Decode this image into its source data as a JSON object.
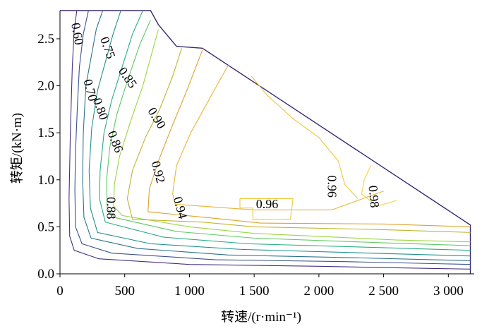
{
  "chart_data": {
    "type": "contour",
    "xlabel": "转速/(r·min⁻¹)",
    "ylabel": "转矩/(kN·m)",
    "xlim": [
      0,
      3200
    ],
    "ylim": [
      0,
      2.8
    ],
    "x_ticks": [
      0,
      500,
      1000,
      1500,
      2000,
      2500,
      3000
    ],
    "x_tick_labels": [
      "0",
      "500",
      "1 000",
      "1 500",
      "2 000",
      "2 500",
      "3 000"
    ],
    "y_ticks": [
      0.0,
      0.5,
      1.0,
      1.5,
      2.0,
      2.5
    ],
    "y_tick_labels": [
      "0.0",
      "0.5",
      "1.0",
      "1.5",
      "2.0",
      "2.5"
    ],
    "envelope": [
      [
        0,
        2.8
      ],
      [
        700,
        2.8
      ],
      [
        760,
        2.65
      ],
      [
        900,
        2.42
      ],
      [
        1100,
        2.4
      ],
      [
        3170,
        0.52
      ],
      [
        3170,
        0.0
      ]
    ],
    "series": [
      {
        "value": 0.6,
        "color": "#46317e",
        "points": [
          [
            130,
            2.8
          ],
          [
            110,
            2.6
          ],
          [
            95,
            2.2
          ],
          [
            80,
            1.5
          ],
          [
            70,
            0.8
          ],
          [
            75,
            0.4
          ],
          [
            110,
            0.25
          ],
          [
            300,
            0.16
          ],
          [
            1000,
            0.1
          ],
          [
            2000,
            0.08
          ],
          [
            3170,
            0.05
          ]
        ]
      },
      {
        "value": 0.7,
        "color": "#3b528b",
        "points": [
          [
            220,
            2.8
          ],
          [
            180,
            2.55
          ],
          [
            150,
            2.2
          ],
          [
            135,
            1.8
          ],
          [
            120,
            1.3
          ],
          [
            115,
            0.9
          ],
          [
            120,
            0.5
          ],
          [
            170,
            0.32
          ],
          [
            400,
            0.22
          ],
          [
            1200,
            0.15
          ],
          [
            2200,
            0.13
          ],
          [
            3170,
            0.1
          ]
        ]
      },
      {
        "value": 0.75,
        "color": "#2c728e",
        "points": [
          [
            330,
            2.8
          ],
          [
            280,
            2.6
          ],
          [
            240,
            2.3
          ],
          [
            200,
            2.0
          ],
          [
            180,
            1.5
          ],
          [
            175,
            1.0
          ],
          [
            185,
            0.6
          ],
          [
            240,
            0.38
          ],
          [
            600,
            0.27
          ],
          [
            1300,
            0.2
          ],
          [
            2300,
            0.17
          ],
          [
            3170,
            0.14
          ]
        ]
      },
      {
        "value": 0.8,
        "color": "#21918c",
        "points": [
          [
            470,
            2.8
          ],
          [
            410,
            2.55
          ],
          [
            350,
            2.25
          ],
          [
            290,
            1.95
          ],
          [
            245,
            1.55
          ],
          [
            225,
            1.1
          ],
          [
            235,
            0.7
          ],
          [
            290,
            0.44
          ],
          [
            700,
            0.32
          ],
          [
            1400,
            0.26
          ],
          [
            2400,
            0.22
          ],
          [
            3170,
            0.19
          ]
        ]
      },
      {
        "value": 0.85,
        "color": "#28ae80",
        "points": [
          [
            640,
            2.8
          ],
          [
            560,
            2.55
          ],
          [
            480,
            2.2
          ],
          [
            400,
            1.85
          ],
          [
            340,
            1.5
          ],
          [
            310,
            1.1
          ],
          [
            305,
            0.8
          ],
          [
            350,
            0.55
          ],
          [
            800,
            0.39
          ],
          [
            1450,
            0.32
          ],
          [
            2450,
            0.28
          ],
          [
            3170,
            0.25
          ]
        ]
      },
      {
        "value": 0.86,
        "color": "#5ec962",
        "points": [
          [
            700,
            2.7
          ],
          [
            620,
            2.45
          ],
          [
            520,
            2.05
          ],
          [
            440,
            1.7
          ],
          [
            385,
            1.35
          ],
          [
            360,
            1.0
          ],
          [
            365,
            0.7
          ],
          [
            420,
            0.6
          ],
          [
            900,
            0.45
          ],
          [
            1500,
            0.38
          ],
          [
            2500,
            0.33
          ],
          [
            3170,
            0.3
          ]
        ]
      },
      {
        "value": 0.88,
        "color": "#9ad640",
        "points": [
          [
            760,
            2.6
          ],
          [
            720,
            2.4
          ],
          [
            640,
            2.0
          ],
          [
            540,
            1.6
          ],
          [
            460,
            1.25
          ],
          [
            420,
            0.95
          ],
          [
            415,
            0.72
          ],
          [
            480,
            0.62
          ],
          [
            1000,
            0.5
          ],
          [
            1500,
            0.43
          ],
          [
            2600,
            0.36
          ],
          [
            3170,
            0.34
          ]
        ]
      },
      {
        "value": 0.9,
        "color": "#c2b42f",
        "points": [
          [
            940,
            2.4
          ],
          [
            870,
            2.1
          ],
          [
            770,
            1.75
          ],
          [
            660,
            1.45
          ],
          [
            560,
            1.1
          ],
          [
            520,
            0.8
          ],
          [
            560,
            0.58
          ],
          [
            1100,
            0.55
          ],
          [
            1500,
            0.5
          ],
          [
            2500,
            0.47
          ],
          [
            3170,
            0.44
          ]
        ]
      },
      {
        "value": 0.92,
        "color": "#dea32e",
        "points": [
          [
            1100,
            2.38
          ],
          [
            980,
            1.95
          ],
          [
            860,
            1.55
          ],
          [
            760,
            1.2
          ],
          [
            690,
            0.9
          ],
          [
            680,
            0.66
          ],
          [
            1200,
            0.59
          ],
          [
            1550,
            0.54
          ],
          [
            2500,
            0.53
          ],
          [
            3170,
            0.5
          ]
        ]
      },
      {
        "value": 0.94,
        "color": "#e8b53a",
        "points": [
          [
            1300,
            2.22
          ],
          [
            1150,
            1.85
          ],
          [
            1010,
            1.5
          ],
          [
            900,
            1.15
          ],
          [
            870,
            0.85
          ],
          [
            890,
            0.74
          ],
          [
            1500,
            0.68
          ],
          [
            2100,
            0.68
          ],
          [
            2300,
            0.78
          ],
          [
            2500,
            0.88
          ]
        ]
      },
      {
        "value": 0.96,
        "color": "#eec640",
        "points": [
          [
            1480,
            2.1
          ],
          [
            1600,
            1.9
          ],
          [
            1800,
            1.65
          ],
          [
            2000,
            1.45
          ],
          [
            2150,
            1.2
          ],
          [
            2200,
            0.95
          ],
          [
            2300,
            0.8
          ]
        ]
      },
      {
        "value": 0.98,
        "color": "#f2d24a",
        "points": [
          [
            2400,
            1.15
          ],
          [
            2350,
            1.0
          ],
          [
            2330,
            0.85
          ],
          [
            2450,
            0.72
          ],
          [
            2600,
            0.78
          ]
        ]
      },
      {
        "value": 0.96,
        "color": "#f0c93c",
        "points": [
          [
            1390,
            0.8
          ],
          [
            1800,
            0.8
          ],
          [
            1780,
            0.58
          ],
          [
            1490,
            0.58
          ],
          [
            1490,
            0.7
          ],
          [
            1390,
            0.7
          ],
          [
            1390,
            0.8
          ]
        ]
      }
    ],
    "labels": [
      {
        "text": "0.60",
        "x": 125,
        "y": 2.55,
        "rotate": 80
      },
      {
        "text": "0.70",
        "x": 225,
        "y": 1.95,
        "rotate": 75
      },
      {
        "text": "0.75",
        "x": 360,
        "y": 2.4,
        "rotate": 70
      },
      {
        "text": "0.80",
        "x": 305,
        "y": 1.75,
        "rotate": 70
      },
      {
        "text": "0.85",
        "x": 515,
        "y": 2.08,
        "rotate": 55
      },
      {
        "text": "0.86",
        "x": 420,
        "y": 1.4,
        "rotate": 68
      },
      {
        "text": "0.88",
        "x": 385,
        "y": 0.7,
        "rotate": 90
      },
      {
        "text": "0.90",
        "x": 740,
        "y": 1.65,
        "rotate": 58
      },
      {
        "text": "0.92",
        "x": 750,
        "y": 1.08,
        "rotate": 75
      },
      {
        "text": "0.94",
        "x": 920,
        "y": 0.7,
        "rotate": 75
      },
      {
        "text": "0.96",
        "x": 2090,
        "y": 0.93,
        "rotate": 90
      },
      {
        "text": "0.98",
        "x": 2415,
        "y": 0.82,
        "rotate": 85
      },
      {
        "text": "0.96",
        "x": 1600,
        "y": 0.73,
        "rotate": 0
      }
    ]
  }
}
